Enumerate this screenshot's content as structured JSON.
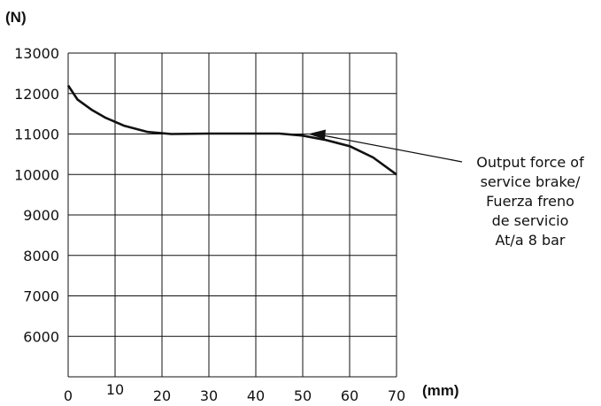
{
  "chart_data": {
    "type": "line",
    "y_unit": "(N)",
    "x_unit": "(mm)",
    "xlim": [
      0,
      70
    ],
    "ylim": [
      5000,
      13000
    ],
    "x_ticks": [
      "0",
      "10",
      "20",
      "30",
      "40",
      "50",
      "60",
      "70"
    ],
    "y_ticks": [
      "13000",
      "12000",
      "11000",
      "10000",
      "9000",
      "8000",
      "7000",
      "6000"
    ],
    "grid": true,
    "series": [
      {
        "x": [
          0,
          2,
          5,
          8,
          12,
          17,
          22,
          30,
          40,
          45,
          50,
          55,
          60,
          65,
          70
        ],
        "y": [
          12200,
          11850,
          11600,
          11400,
          11200,
          11050,
          11000,
          11010,
          11010,
          11010,
          10960,
          10850,
          10700,
          10420,
          10000
        ]
      }
    ],
    "annotation": {
      "lines": [
        "Output force of",
        "service brake/",
        "Fuerza freno",
        "de servicio",
        "At/a 8 bar"
      ],
      "points_to": {
        "x": 50,
        "y": 11000
      }
    }
  }
}
